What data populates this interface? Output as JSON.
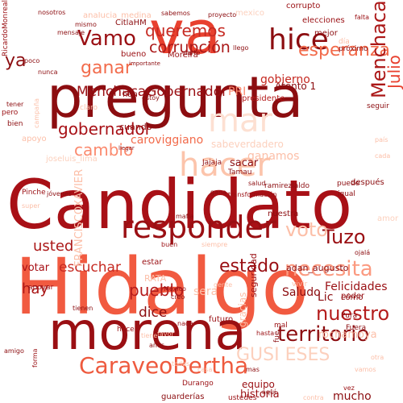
{
  "cloud": {
    "words": [
      {
        "text": "Hidalgo",
        "color": "#f15a40"
      },
      {
        "text": "Candidato",
        "color": "#a81016"
      },
      {
        "text": "pregunta",
        "color": "#8c0d10"
      },
      {
        "text": "morena",
        "color": "#9a0f13"
      },
      {
        "text": "va",
        "color": "#e8402e"
      },
      {
        "text": "responder",
        "color": "#9a0f13"
      },
      {
        "text": "hice",
        "color": "#8c0d10"
      },
      {
        "text": "CaraveoBertha",
        "color": "#ee5a3e"
      },
      {
        "text": "Vamo",
        "color": "#9a0f13"
      },
      {
        "text": "territorio",
        "color": "#8c0d10"
      },
      {
        "text": "nuestro",
        "color": "#b41c1c"
      },
      {
        "text": "necesita",
        "color": "#fb9a80"
      },
      {
        "text": "Tuzo",
        "color": "#9a0f13"
      },
      {
        "text": "MenchacaGobernador",
        "color": "#9a0f13"
      },
      {
        "text": "gobernador",
        "color": "#a81016"
      },
      {
        "text": "corrupción",
        "color": "#ab1717"
      },
      {
        "text": "esperanza",
        "color": "#f26b4b"
      },
      {
        "text": "queremos",
        "color": "#c62a22"
      },
      {
        "text": "ganar",
        "color": "#f26b4b"
      },
      {
        "text": "Menchaca",
        "color": "#ab1717"
      },
      {
        "text": "Julio",
        "color": "#e8402e"
      },
      {
        "text": "voto",
        "color": "#fcbfa8"
      },
      {
        "text": "cambio",
        "color": "#fb8a6e"
      },
      {
        "text": "estado",
        "color": "#9a0f13"
      },
      {
        "text": "escuchar",
        "color": "#c62a22"
      },
      {
        "text": "pueblo",
        "color": "#b41c1c"
      },
      {
        "text": "usted",
        "color": "#ab1717"
      },
      {
        "text": "votar",
        "color": "#a81016"
      },
      {
        "text": "GUSI ESES",
        "color": "#fcd0bd"
      },
      {
        "text": "caroviggiano",
        "color": "#f26b4b"
      },
      {
        "text": "hacer",
        "color": "#fcc4ab"
      },
      {
        "text": "mar",
        "color": "#fde0d2"
      },
      {
        "text": "Felicidades",
        "color": "#9a0f13"
      },
      {
        "text": "Saludo",
        "color": "#8c0d10"
      },
      {
        "text": "Lic",
        "color": "#8c0d10"
      },
      {
        "text": "mucho",
        "color": "#8c0d10"
      },
      {
        "text": "historia",
        "color": "#9a0f13"
      },
      {
        "text": "equipo",
        "color": "#9a0f13"
      },
      {
        "text": "dice",
        "color": "#8c0d10"
      },
      {
        "text": "hay",
        "color": "#ab1717"
      },
      {
        "text": "ya",
        "color": "#8c0d10"
      },
      {
        "text": "PRI",
        "color": "#fb8a6e"
      },
      {
        "text": "adan_augusto",
        "color": "#8c0d10"
      },
      {
        "text": "FRANCISCOXAVIER",
        "color": "#fcbfa8"
      },
      {
        "text": "CitlaHM",
        "color": "#8c0d10"
      },
      {
        "text": "anaIucia_medina",
        "color": "#fcbfa8"
      },
      {
        "text": "joseluis_lima",
        "color": "#fcd0bd"
      },
      {
        "text": "sabeverdadero",
        "color": "#fcd0bd"
      },
      {
        "text": "Atento 1",
        "color": "#8c0d10"
      },
      {
        "text": "RicardoMonreal",
        "color": "#9a0f13"
      },
      {
        "text": "mexico",
        "color": "#fcd0bd"
      },
      {
        "text": "elecciones",
        "color": "#9a0f13"
      },
      {
        "text": "bueno",
        "color": "#9a0f13"
      },
      {
        "text": "mejor",
        "color": "#8c0d10"
      },
      {
        "text": "gobierno",
        "color": "#c62a22"
      },
      {
        "text": "corrupto",
        "color": "#9a0f13"
      },
      {
        "text": "presidente",
        "color": "#b41c1c"
      },
      {
        "text": "Moreira",
        "color": "#9a0f13"
      },
      {
        "text": "ganamos",
        "color": "#fcbfa8"
      },
      {
        "text": "sacar",
        "color": "#8c0d10"
      },
      {
        "text": "después",
        "color": "#8c0d10"
      },
      {
        "text": "tener",
        "color": "#8c0d10"
      },
      {
        "text": "apoyo",
        "color": "#fcbfa8"
      },
      {
        "text": "seguir",
        "color": "#8c0d10"
      },
      {
        "text": "seguridad",
        "color": "#9a0f13"
      },
      {
        "text": "futuro",
        "color": "#9a0f13"
      },
      {
        "text": "transformación",
        "color": "#9a0f13"
      },
      {
        "text": "nuestra",
        "color": "#8c0d10"
      },
      {
        "text": "gracias",
        "color": "#fcbfa8"
      },
      {
        "text": "sera",
        "color": "#fcbfa8"
      },
      {
        "text": "amor",
        "color": "#fcd0bd"
      },
      {
        "text": "poder",
        "color": "#9a0f13"
      },
      {
        "text": "RATA",
        "color": "#fcbfa8"
      },
      {
        "text": "cómo",
        "color": "#8c0d10"
      },
      {
        "text": "estar",
        "color": "#9a0f13"
      },
      {
        "text": "ramirezlaldo",
        "color": "#8c0d10"
      },
      {
        "text": "fue",
        "color": "#8c0d10"
      },
      {
        "text": "vivir",
        "color": "#fcbfa8"
      },
      {
        "text": "Pura",
        "color": "#8c0d10"
      },
      {
        "text": "mal",
        "color": "#9a0f13"
      },
      {
        "text": "Durango",
        "color": "#9a0f13"
      },
      {
        "text": "guarderías",
        "color": "#8c0d10"
      },
      {
        "text": "ustedes",
        "color": "#9a0f13"
      },
      {
        "text": "contra",
        "color": "#fcbfa8"
      },
      {
        "text": "hasta",
        "color": "#9a0f13"
      },
      {
        "text": "cuando",
        "color": "#8c0d10"
      },
      {
        "text": "Pinche",
        "color": "#9a0f13"
      },
      {
        "text": "México",
        "color": "#9a0f13"
      },
      {
        "text": "vez",
        "color": "#9a0f13"
      },
      {
        "text": "mismo",
        "color": "#8c0d10"
      },
      {
        "text": "nosotros",
        "color": "#8c0d10"
      },
      {
        "text": "mensaje",
        "color": "#8c0d10"
      },
      {
        "text": "sabemos",
        "color": "#8c0d10"
      },
      {
        "text": "proyecto",
        "color": "#8c0d10"
      },
      {
        "text": "falta",
        "color": "#9a0f13"
      },
      {
        "text": "día",
        "color": "#fcbfa8"
      },
      {
        "text": "próximo",
        "color": "#8c0d10"
      },
      {
        "text": "llego",
        "color": "#8c0d10"
      },
      {
        "text": "parte",
        "color": "#8c0d10"
      },
      {
        "text": "importante",
        "color": "#8c0d10"
      },
      {
        "text": "nunca",
        "color": "#8c0d10"
      },
      {
        "text": "poco",
        "color": "#8c0d10"
      },
      {
        "text": "claro",
        "color": "#fcbfa8"
      },
      {
        "text": "han",
        "color": "#8c0d10"
      },
      {
        "text": "estoy",
        "color": "#8c0d10"
      },
      {
        "text": "pero",
        "color": "#9a0f13"
      },
      {
        "text": "bien",
        "color": "#8c0d10"
      },
      {
        "text": "campaña",
        "color": "#fcbfa8"
      },
      {
        "text": "llegar",
        "color": "#8c0d10"
      },
      {
        "text": "jóvenes",
        "color": "#8c0d10"
      },
      {
        "text": "super",
        "color": "#fcbfa8"
      },
      {
        "text": "salud",
        "color": "#8c0d10"
      },
      {
        "text": "igual",
        "color": "#8c0d10"
      },
      {
        "text": "puede",
        "color": "#8c0d10"
      },
      {
        "text": "apoyar",
        "color": "#9a0f13"
      },
      {
        "text": "Jajaja",
        "color": "#8c0d10"
      },
      {
        "text": "mafia",
        "color": "#8c0d10"
      },
      {
        "text": "creo",
        "color": "#8c0d10"
      },
      {
        "text": "tienen",
        "color": "#8c0d10"
      },
      {
        "text": "amigo",
        "color": "#8c0d10"
      },
      {
        "text": "forma",
        "color": "#9a0f13"
      },
      {
        "text": "nada",
        "color": "#9a0f13"
      },
      {
        "text": "todos",
        "color": "#fcbfa8"
      },
      {
        "text": "Fuera",
        "color": "#8c0d10"
      },
      {
        "text": "rochamoya",
        "color": "#fcbfa8"
      },
      {
        "text": "favor",
        "color": "#fcbfa8"
      },
      {
        "text": "tiene",
        "color": "#fcbfa8"
      },
      {
        "text": "años",
        "color": "#8c0d10"
      },
      {
        "text": "aquí",
        "color": "#8c0d10"
      },
      {
        "text": "mas",
        "color": "#8c0d10"
      },
      {
        "text": "casa",
        "color": "#fcbfa8"
      },
      {
        "text": "gente",
        "color": "#fcbfa8"
      },
      {
        "text": "Tamau",
        "color": "#8c0d10"
      },
      {
        "text": "gana",
        "color": "#8c0d10"
      },
      {
        "text": "hace",
        "color": "#9a0f13"
      },
      {
        "text": "buen",
        "color": "#9a0f13"
      },
      {
        "text": "siempre",
        "color": "#fcbfa8"
      },
      {
        "text": "ojalá",
        "color": "#8c0d10"
      },
      {
        "text": "vamos",
        "color": "#fcbfa8"
      },
      {
        "text": "otra",
        "color": "#fcbfa8"
      },
      {
        "text": "país",
        "color": "#fcbfa8"
      },
      {
        "text": "cada",
        "color": "#fcbfa8"
      }
    ]
  }
}
